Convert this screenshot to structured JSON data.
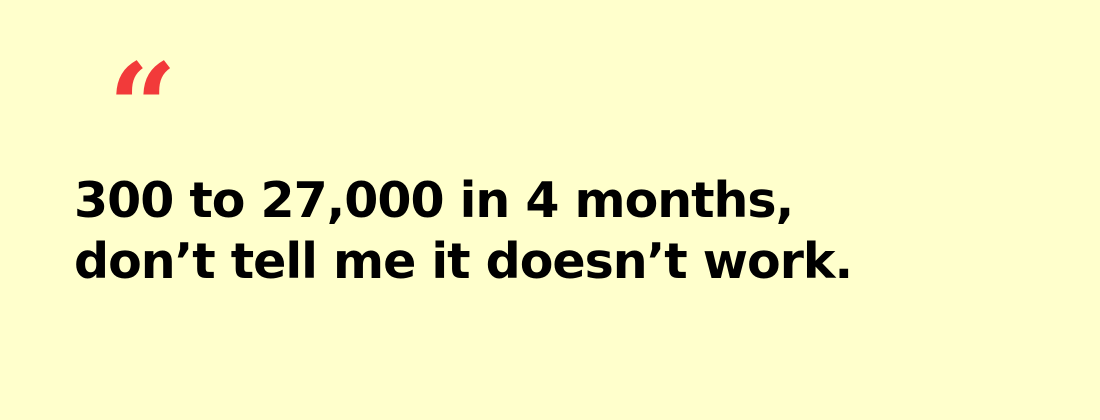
{
  "quote": {
    "mark": "“",
    "lines": [
      "300 to 27,000 in 4 months,",
      "don’t tell me it doesn’t work."
    ]
  },
  "colors": {
    "background": "#FFFFCC",
    "accent": "#F23A3A",
    "text": "#000000"
  }
}
